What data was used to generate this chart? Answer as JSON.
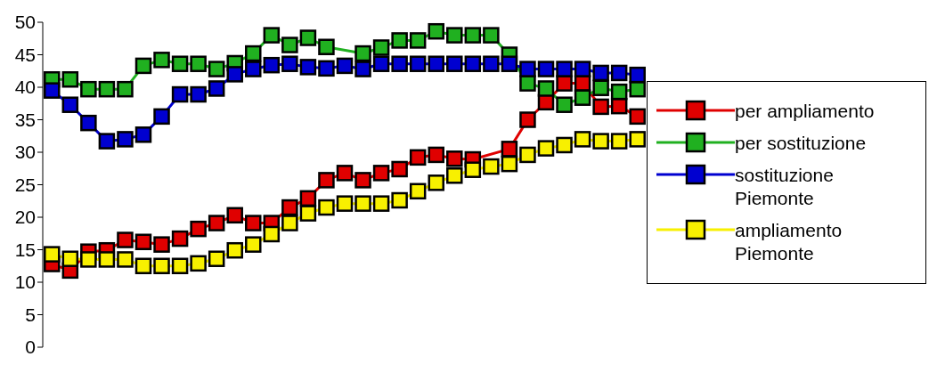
{
  "chart_data": {
    "type": "line",
    "categories": [
      null,
      null,
      null,
      null,
      null,
      null,
      null,
      null,
      null,
      null,
      null,
      null,
      null,
      null,
      null,
      null,
      null,
      null,
      null,
      null,
      null,
      null,
      null,
      null,
      null,
      null,
      null,
      null,
      null,
      null,
      null,
      null,
      null
    ],
    "series": [
      {
        "name": "per ampliamento",
        "color": "#e00000",
        "values": [
          12.8,
          11.8,
          14.7,
          14.9,
          16.5,
          16.2,
          15.8,
          16.7,
          18.2,
          19.1,
          20.3,
          19.1,
          19.1,
          21.5,
          22.9,
          25.7,
          26.8,
          25.7,
          26.8,
          27.4,
          29.2,
          29.6,
          29.0,
          28.9,
          null,
          30.5,
          35.0,
          37.7,
          40.6,
          40.6,
          37.0,
          37.1,
          35.5
        ]
      },
      {
        "name": "per sostituzione",
        "color": "#20b020",
        "values": [
          41.2,
          41.2,
          39.7,
          39.7,
          39.7,
          43.3,
          44.2,
          43.6,
          43.6,
          42.8,
          43.7,
          45.2,
          48.0,
          46.5,
          47.6,
          46.2,
          null,
          45.2,
          46.1,
          47.2,
          47.2,
          48.6,
          48.0,
          48.0,
          48.0,
          45.0,
          40.6,
          39.8,
          37.3,
          38.4,
          39.9,
          39.3,
          39.7
        ]
      },
      {
        "name": "sostituzione Piemonte",
        "color": "#0000d0",
        "values": [
          39.5,
          37.3,
          34.5,
          31.7,
          32.0,
          32.7,
          35.5,
          38.9,
          38.9,
          39.8,
          42.0,
          42.8,
          43.4,
          43.6,
          43.1,
          42.9,
          43.3,
          42.8,
          43.6,
          43.6,
          43.6,
          43.6,
          43.6,
          43.6,
          43.6,
          43.6,
          42.8,
          42.8,
          42.8,
          42.8,
          42.2,
          42.2,
          41.9
        ]
      },
      {
        "name": "ampliamento Piemonte",
        "color": "#f8f000",
        "values": [
          14.3,
          13.6,
          13.5,
          13.5,
          13.5,
          12.5,
          12.5,
          12.5,
          12.9,
          13.6,
          14.9,
          15.8,
          17.4,
          19.1,
          20.6,
          21.5,
          22.1,
          22.1,
          22.1,
          22.6,
          24.0,
          25.3,
          26.4,
          27.3,
          27.8,
          28.2,
          29.6,
          30.6,
          31.1,
          32.0,
          31.7,
          31.7,
          32.0
        ]
      }
    ],
    "ylim": [
      0,
      50
    ],
    "yticks": [
      0,
      5,
      10,
      15,
      20,
      25,
      30,
      35,
      40,
      45,
      50
    ],
    "grid": false,
    "legend": "right",
    "marker": "square",
    "line_style": "solid"
  }
}
